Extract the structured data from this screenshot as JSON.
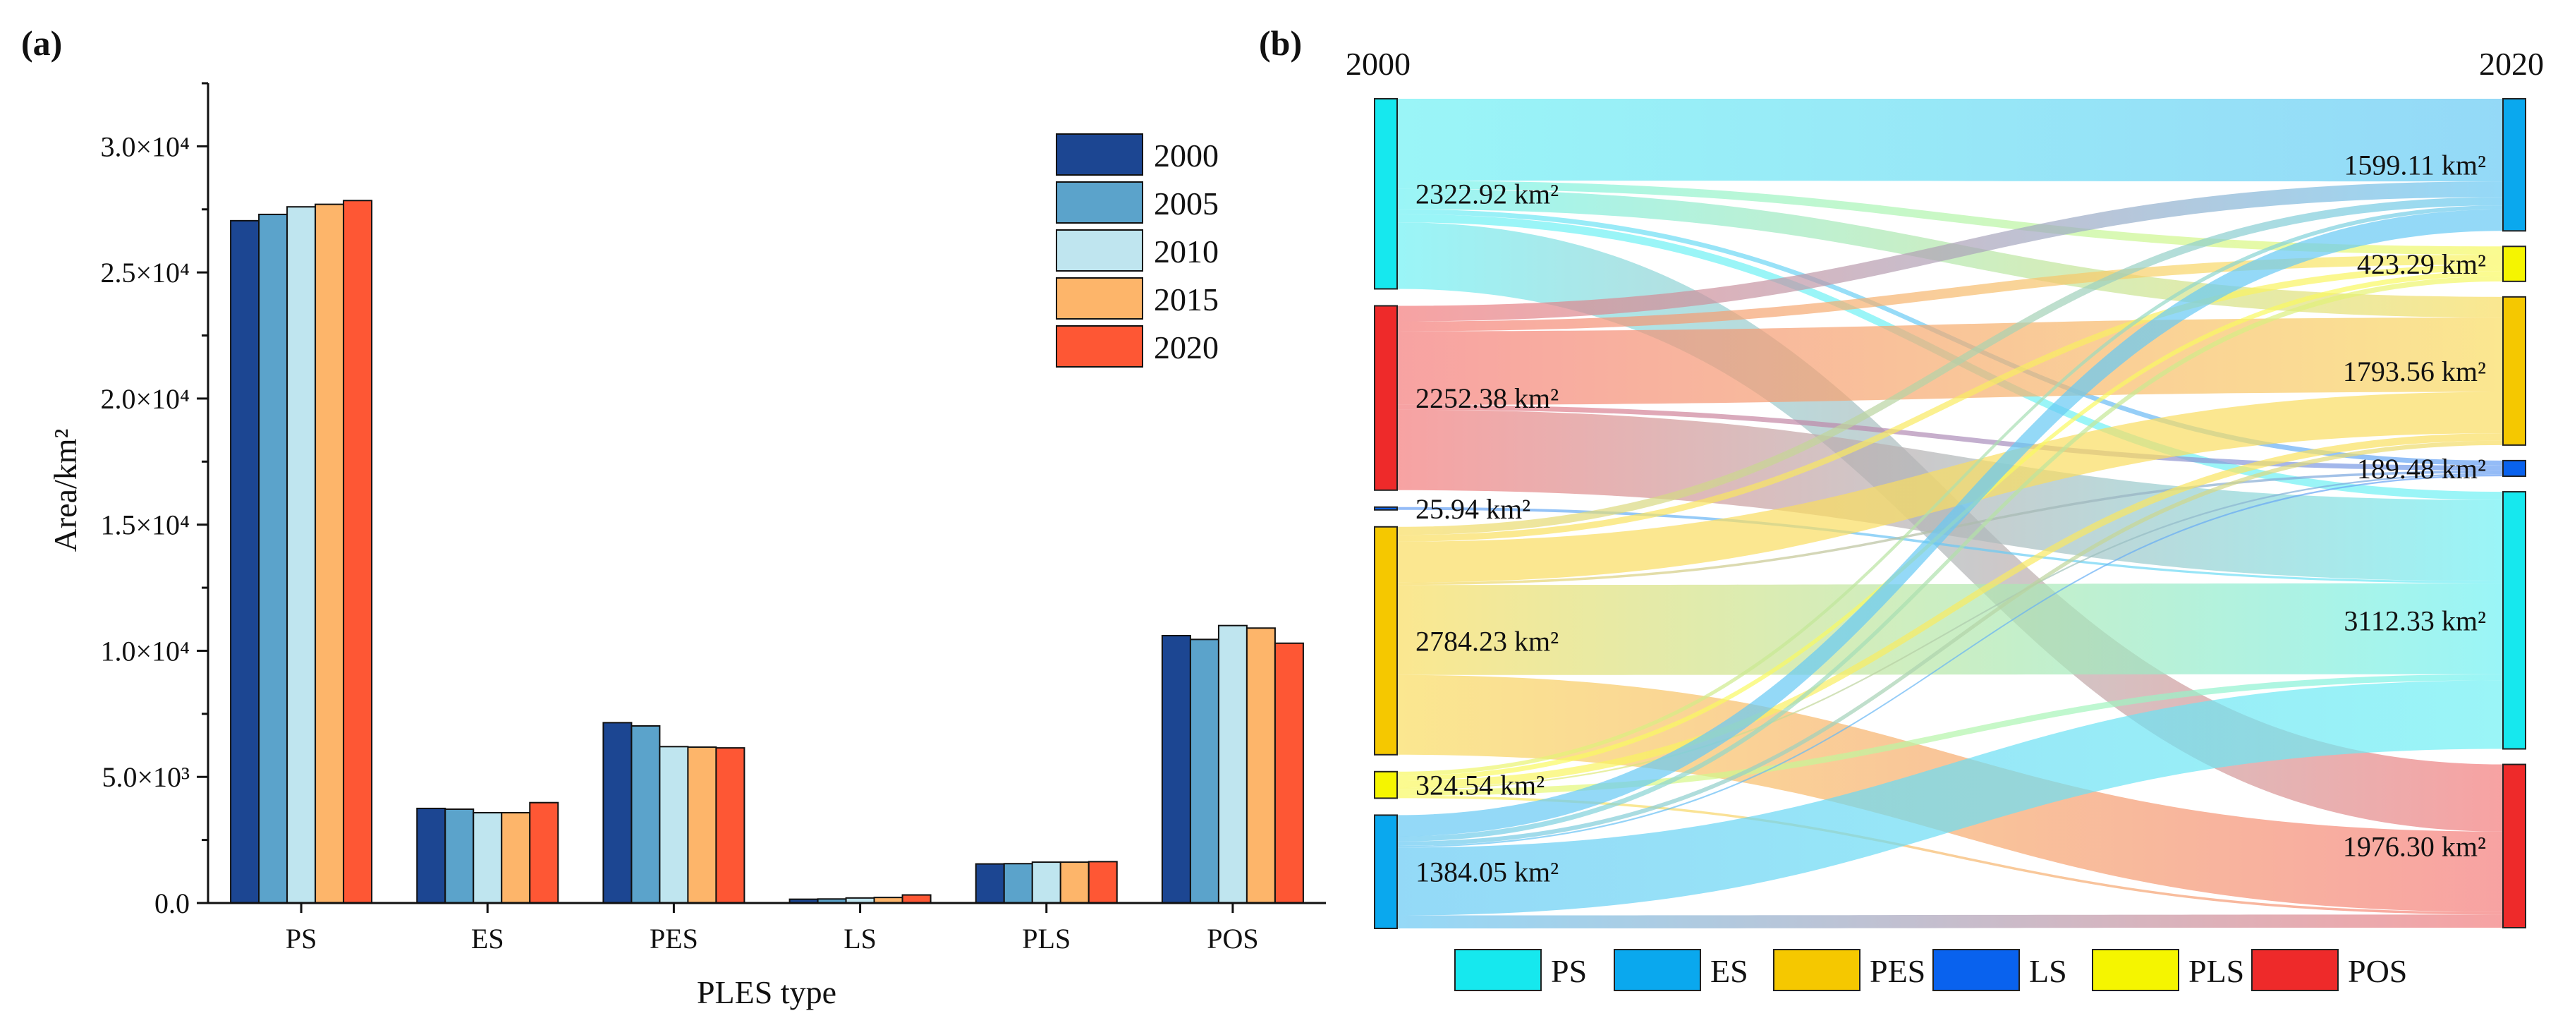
{
  "panel_a": {
    "label": "(a)"
  },
  "panel_b": {
    "label": "(b)",
    "left_year": "2000",
    "right_year": "2020"
  },
  "chart_data": [
    {
      "type": "bar",
      "title": "",
      "xlabel": "PLES type",
      "ylabel": "Area/km²",
      "ylim": [
        0,
        32500
      ],
      "yticks": [
        {
          "value": 0,
          "label": "0.0"
        },
        {
          "value": 5000,
          "label": "5.0×10³"
        },
        {
          "value": 10000,
          "label": "1.0×10⁴"
        },
        {
          "value": 15000,
          "label": "1.5×10⁴"
        },
        {
          "value": 20000,
          "label": "2.0×10⁴"
        },
        {
          "value": 25000,
          "label": "2.5×10⁴"
        },
        {
          "value": 30000,
          "label": "3.0×10⁴"
        }
      ],
      "categories": [
        "PS",
        "ES",
        "PES",
        "LS",
        "PLS",
        "POS"
      ],
      "legend_position": "top-right",
      "series": [
        {
          "name": "2000",
          "color": "#1c4692",
          "values": [
            27050,
            3750,
            7150,
            150,
            1550,
            10600
          ]
        },
        {
          "name": "2005",
          "color": "#5ba3cb",
          "values": [
            27300,
            3720,
            7020,
            160,
            1560,
            10450
          ]
        },
        {
          "name": "2010",
          "color": "#bfe5ef",
          "values": [
            27600,
            3580,
            6200,
            200,
            1620,
            11000
          ]
        },
        {
          "name": "2015",
          "color": "#fdb56a",
          "values": [
            27700,
            3580,
            6180,
            220,
            1620,
            10900
          ]
        },
        {
          "name": "2020",
          "color": "#fe5734",
          "values": [
            27850,
            3980,
            6150,
            320,
            1640,
            10300
          ]
        }
      ]
    },
    {
      "type": "sankey",
      "title": "",
      "categories": [
        "PS",
        "ES",
        "PES",
        "LS",
        "PLS",
        "POS"
      ],
      "colors": {
        "PS": "#16e8ee",
        "ES": "#0aa8ee",
        "PES": "#f5c800",
        "LS": "#0962ee",
        "PLS": "#f5f500",
        "POS": "#ee2a2a"
      },
      "left_nodes": [
        {
          "category": "PS",
          "value": 2322.92,
          "label": "2322.92 km²"
        },
        {
          "category": "POS",
          "value": 2252.38,
          "label": "2252.38 km²"
        },
        {
          "category": "LS",
          "value": 25.94,
          "label": "25.94 km²"
        },
        {
          "category": "PES",
          "value": 2784.23,
          "label": "2784.23 km²"
        },
        {
          "category": "PLS",
          "value": 324.54,
          "label": "324.54 km²"
        },
        {
          "category": "ES",
          "value": 1384.05,
          "label": "1384.05 km²"
        }
      ],
      "right_nodes": [
        {
          "category": "ES",
          "value": 1599.11,
          "label": "1599.11 km²"
        },
        {
          "category": "PLS",
          "value": 423.29,
          "label": "423.29 km²"
        },
        {
          "category": "PES",
          "value": 1793.56,
          "label": "1793.56 km²"
        },
        {
          "category": "LS",
          "value": 189.48,
          "label": "189.48 km²"
        },
        {
          "category": "PS",
          "value": 3112.33,
          "label": "3112.33 km²"
        },
        {
          "category": "POS",
          "value": 1976.3,
          "label": "1976.30 km²"
        }
      ],
      "flows": [
        {
          "from": "PS",
          "to": "ES",
          "value": 1000
        },
        {
          "from": "PS",
          "to": "PLS",
          "value": 100
        },
        {
          "from": "PS",
          "to": "PES",
          "value": 250
        },
        {
          "from": "PS",
          "to": "LS",
          "value": 60
        },
        {
          "from": "PS",
          "to": "PS",
          "value": 100
        },
        {
          "from": "PS",
          "to": "POS",
          "value": 812.92
        },
        {
          "from": "POS",
          "to": "ES",
          "value": 190
        },
        {
          "from": "POS",
          "to": "PLS",
          "value": 120
        },
        {
          "from": "POS",
          "to": "PES",
          "value": 900
        },
        {
          "from": "POS",
          "to": "LS",
          "value": 60
        },
        {
          "from": "POS",
          "to": "PS",
          "value": 982.38
        },
        {
          "from": "LS",
          "to": "PS",
          "value": 25.94
        },
        {
          "from": "PES",
          "to": "ES",
          "value": 100
        },
        {
          "from": "PES",
          "to": "PLS",
          "value": 80
        },
        {
          "from": "PES",
          "to": "PES",
          "value": 500
        },
        {
          "from": "PES",
          "to": "LS",
          "value": 30
        },
        {
          "from": "PES",
          "to": "PS",
          "value": 1100
        },
        {
          "from": "PES",
          "to": "POS",
          "value": 974.23
        },
        {
          "from": "PLS",
          "to": "ES",
          "value": 50
        },
        {
          "from": "PLS",
          "to": "PLS",
          "value": 60
        },
        {
          "from": "PLS",
          "to": "PES",
          "value": 90
        },
        {
          "from": "PLS",
          "to": "LS",
          "value": 20
        },
        {
          "from": "PLS",
          "to": "PS",
          "value": 74.54
        },
        {
          "from": "PLS",
          "to": "POS",
          "value": 30
        },
        {
          "from": "ES",
          "to": "ES",
          "value": 259.11
        },
        {
          "from": "ES",
          "to": "PLS",
          "value": 63.29
        },
        {
          "from": "ES",
          "to": "PES",
          "value": 53.56
        },
        {
          "from": "ES",
          "to": "LS",
          "value": 19.48
        },
        {
          "from": "ES",
          "to": "PS",
          "value": 829.47
        },
        {
          "from": "ES",
          "to": "POS",
          "value": 159.15
        }
      ]
    }
  ]
}
